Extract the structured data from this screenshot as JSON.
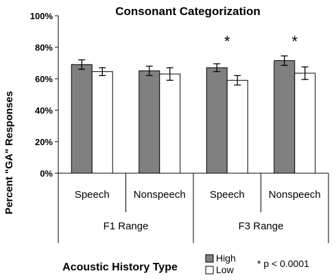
{
  "chart_data": {
    "type": "bar",
    "title": "Consonant Categorization",
    "ylabel": "Percent \"GA\" Responses",
    "xlabel": "Acoustic History Type",
    "ylim": [
      0,
      100
    ],
    "yticks": [
      "0%",
      "20%",
      "40%",
      "60%",
      "80%",
      "100%"
    ],
    "ytick_values": [
      0,
      20,
      40,
      60,
      80,
      100
    ],
    "grid": false,
    "groups": [
      "F1 Range",
      "F3 Range"
    ],
    "categories": [
      "Speech",
      "Nonspeech",
      "Speech",
      "Nonspeech"
    ],
    "category_group": [
      0,
      0,
      1,
      1
    ],
    "series": [
      {
        "name": "High",
        "color": "#808080",
        "values": [
          69,
          65,
          67,
          71.5
        ],
        "errors": [
          3,
          3,
          2.5,
          3
        ]
      },
      {
        "name": "Low",
        "color": "#ffffff",
        "values": [
          64.5,
          63,
          59,
          63.5
        ],
        "errors": [
          2.5,
          4,
          3,
          4
        ]
      }
    ],
    "significance": [
      "",
      "",
      "*",
      "*"
    ],
    "legend_position": "bottom",
    "note": "* p < 0.0001"
  }
}
